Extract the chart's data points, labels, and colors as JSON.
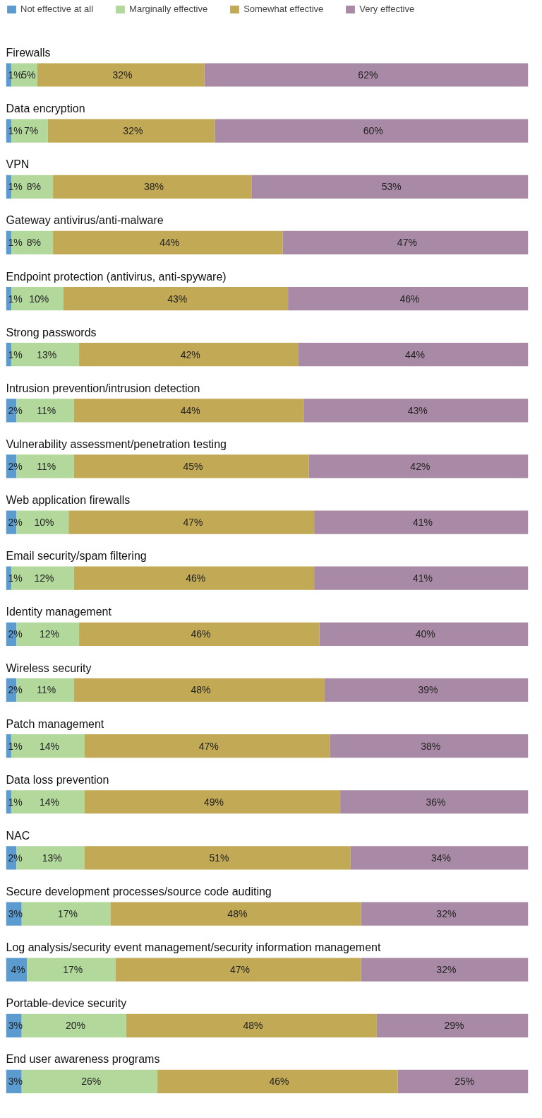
{
  "chart_data": {
    "type": "bar",
    "orientation": "horizontal",
    "stacked": true,
    "categories": [
      "Firewalls",
      "Data encryption",
      "VPN",
      "Gateway antivirus/anti-malware",
      "Endpoint protection (antivirus, anti-spyware)",
      "Strong passwords",
      "Intrusion prevention/intrusion detection",
      "Vulnerability assessment/penetration testing",
      "Web application firewalls",
      "Email security/spam filtering",
      "Identity management",
      "Wireless security",
      "Patch management",
      "Data loss prevention",
      "NAC",
      "Secure development processes/source code auditing",
      "Log analysis/security event management/security information management",
      "Portable-device security",
      "End user awareness programs"
    ],
    "series": [
      {
        "name": "Not effective at all",
        "color": "#5b9bcf",
        "values": [
          1,
          1,
          1,
          1,
          1,
          1,
          2,
          2,
          2,
          1,
          2,
          2,
          1,
          1,
          2,
          3,
          4,
          3,
          3
        ],
        "value_labels": [
          "1%",
          "1%",
          "1%",
          "1%",
          "1%",
          "1%",
          "2%",
          "2%",
          "2%",
          "1%",
          "2%",
          "2%",
          "1%",
          "1%",
          "2%",
          "3%",
          "4%",
          "3%",
          "3%"
        ]
      },
      {
        "name": "Marginally effective",
        "color": "#b3d89c",
        "values": [
          5,
          7,
          8,
          8,
          10,
          13,
          11,
          11,
          10,
          12,
          12,
          11,
          14,
          14,
          13,
          17,
          17,
          20,
          26
        ],
        "value_labels": [
          "5%",
          "7%",
          "8%",
          "8%",
          "10%",
          "13%",
          "11%",
          "11%",
          "10%",
          "12%",
          "12%",
          "11%",
          "14%",
          "14%",
          "13%",
          "17%",
          "17%",
          "20%",
          "26%"
        ]
      },
      {
        "name": "Somewhat effective",
        "color": "#c2a955",
        "values": [
          32,
          32,
          38,
          44,
          43,
          42,
          44,
          45,
          47,
          46,
          46,
          48,
          47,
          49,
          51,
          48,
          47,
          48,
          46
        ],
        "value_labels": [
          "32%",
          "32%",
          "38%",
          "44%",
          "43%",
          "42%",
          "44%",
          "45%",
          "47%",
          "46%",
          "46%",
          "48%",
          "47%",
          "49%",
          "51%",
          "48%",
          "47%",
          "48%",
          "46%"
        ]
      },
      {
        "name": "Very effective",
        "color": "#a98aa6",
        "values": [
          62,
          60,
          53,
          47,
          46,
          44,
          43,
          42,
          41,
          41,
          40,
          39,
          38,
          36,
          34,
          32,
          32,
          29,
          25
        ],
        "value_labels": [
          "62%",
          "60%",
          "53%",
          "47%",
          "46%",
          "44%",
          "43%",
          "42%",
          "41%",
          "41%",
          "40%",
          "39%",
          "38%",
          "36%",
          "34%",
          "32%",
          "32%",
          "29%",
          "25%"
        ]
      }
    ],
    "xlim": [
      0,
      100
    ],
    "tick_labels": false,
    "grid": false,
    "legend": "top"
  }
}
